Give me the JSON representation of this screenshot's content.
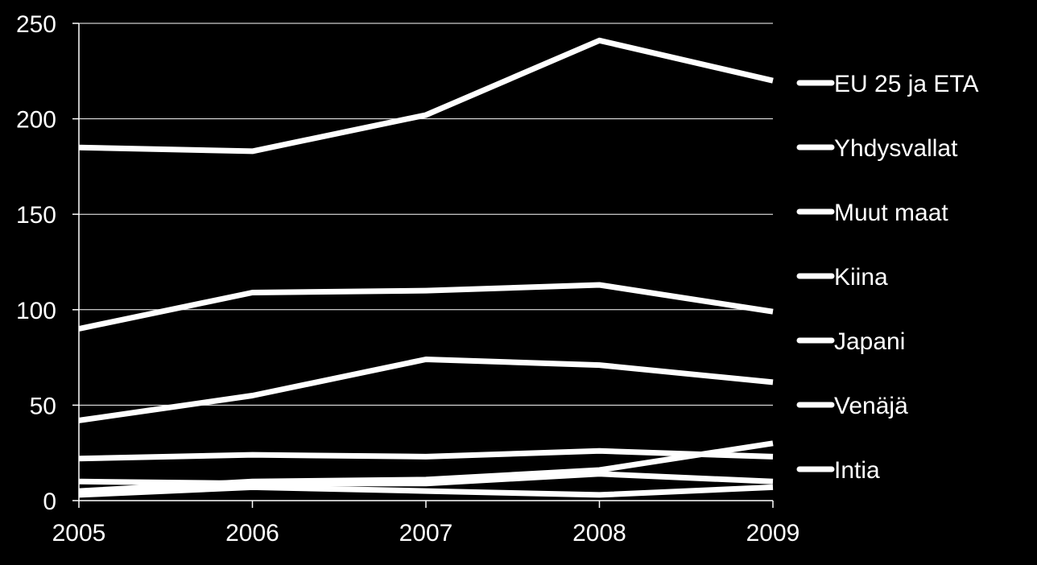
{
  "chart_data": {
    "type": "line",
    "title": "",
    "xlabel": "",
    "ylabel": "",
    "x": [
      "2005",
      "2006",
      "2007",
      "2008",
      "2009"
    ],
    "ylim": [
      0,
      250
    ],
    "yticks": [
      "0",
      "50",
      "100",
      "150",
      "200",
      "250"
    ],
    "grid": true,
    "legend_position": "right",
    "line_color": "#ffffff",
    "background": "#000000",
    "series": [
      {
        "name": "EU 25 ja ETA",
        "values": [
          185,
          183,
          202,
          241,
          220
        ]
      },
      {
        "name": "Yhdysvallat",
        "values": [
          90,
          109,
          110,
          113,
          99
        ]
      },
      {
        "name": "Muut maat",
        "values": [
          42,
          55,
          74,
          71,
          62
        ]
      },
      {
        "name": "Kiina",
        "values": [
          22,
          24,
          23,
          26,
          23
        ]
      },
      {
        "name": "Japani",
        "values": [
          5,
          10,
          11,
          16,
          30
        ]
      },
      {
        "name": "Venäjä",
        "values": [
          10,
          9,
          9,
          14,
          10
        ]
      },
      {
        "name": "Intia",
        "values": [
          3,
          7,
          5,
          3,
          7
        ]
      }
    ]
  }
}
